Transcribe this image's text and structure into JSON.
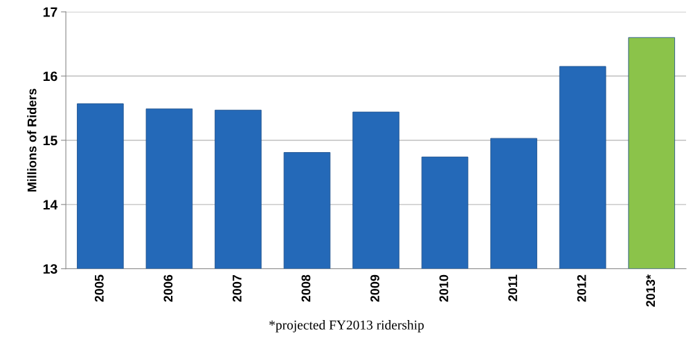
{
  "chart_data": {
    "type": "bar",
    "ylabel": "Millions of Riders",
    "categories": [
      "2005",
      "2006",
      "2007",
      "2008",
      "2009",
      "2010",
      "2011",
      "2012",
      "2013*"
    ],
    "values": [
      15.57,
      15.49,
      15.47,
      14.81,
      15.44,
      14.74,
      15.03,
      16.15,
      16.6
    ],
    "colors": [
      "#2469b8",
      "#2469b8",
      "#2469b8",
      "#2469b8",
      "#2469b8",
      "#2469b8",
      "#2469b8",
      "#2469b8",
      "#8bc34a"
    ],
    "ylim": [
      13,
      17
    ],
    "yticks": [
      13,
      14,
      15,
      16,
      17
    ],
    "grid": "y",
    "annotations": [
      "*projected FY2013 ridership"
    ]
  }
}
